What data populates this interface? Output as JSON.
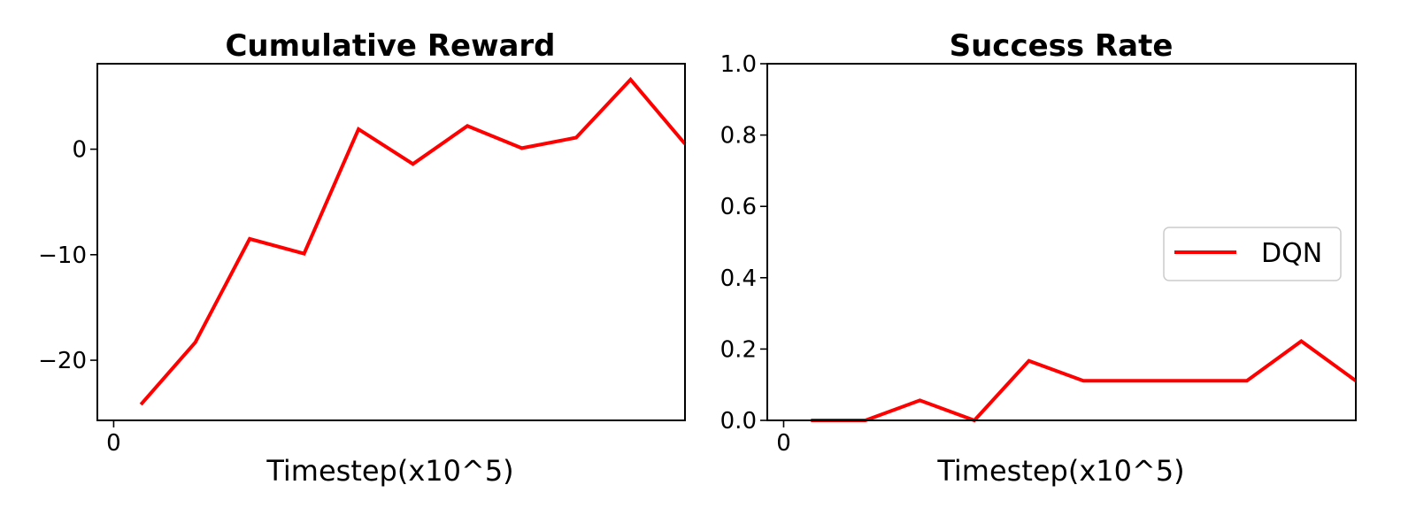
{
  "chart_data": [
    {
      "type": "line",
      "title": "Cumulative Reward",
      "xlabel": "Timestep(x10^5)",
      "ylabel": "",
      "x": [
        0.5,
        1.5,
        2.5,
        3.5,
        4.5,
        5.5,
        6.5,
        7.5,
        8.5,
        9.5,
        10.5
      ],
      "series": [
        {
          "values": [
            -24.2,
            -18.3,
            -8.5,
            -9.9,
            1.9,
            -1.4,
            2.2,
            0.1,
            1.1,
            6.6,
            0.5
          ],
          "color": "#ff0000"
        }
      ],
      "xlim": [
        -0.3,
        10.5
      ],
      "ylim": [
        -25.7,
        8.1
      ],
      "xticks": [
        {
          "value": 0,
          "label": "0"
        }
      ],
      "yticks": [
        {
          "value": -20,
          "label": "−20"
        },
        {
          "value": -10,
          "label": "−10"
        },
        {
          "value": 0,
          "label": "0"
        }
      ],
      "grid": false,
      "legend": null
    },
    {
      "type": "line",
      "title": "Success Rate",
      "xlabel": "Timestep(x10^5)",
      "ylabel": "",
      "x": [
        0.5,
        1.5,
        2.5,
        3.5,
        4.5,
        5.5,
        6.5,
        7.5,
        8.5,
        9.5,
        10.5
      ],
      "series": [
        {
          "name": "DQN",
          "values": [
            0.0,
            0.0,
            0.056,
            0.0,
            0.167,
            0.111,
            0.111,
            0.111,
            0.111,
            0.222,
            0.111
          ],
          "color": "#ff0000"
        }
      ],
      "xlim": [
        -0.3,
        10.5
      ],
      "ylim": [
        0,
        1
      ],
      "xticks": [
        {
          "value": 0,
          "label": "0"
        }
      ],
      "yticks": [
        {
          "value": 0.0,
          "label": "0.0"
        },
        {
          "value": 0.2,
          "label": "0.2"
        },
        {
          "value": 0.4,
          "label": "0.4"
        },
        {
          "value": 0.6,
          "label": "0.6"
        },
        {
          "value": 0.8,
          "label": "0.8"
        },
        {
          "value": 1.0,
          "label": "1.0"
        }
      ],
      "grid": false,
      "legend": {
        "position": "center-right",
        "entries": [
          "DQN"
        ]
      }
    }
  ]
}
